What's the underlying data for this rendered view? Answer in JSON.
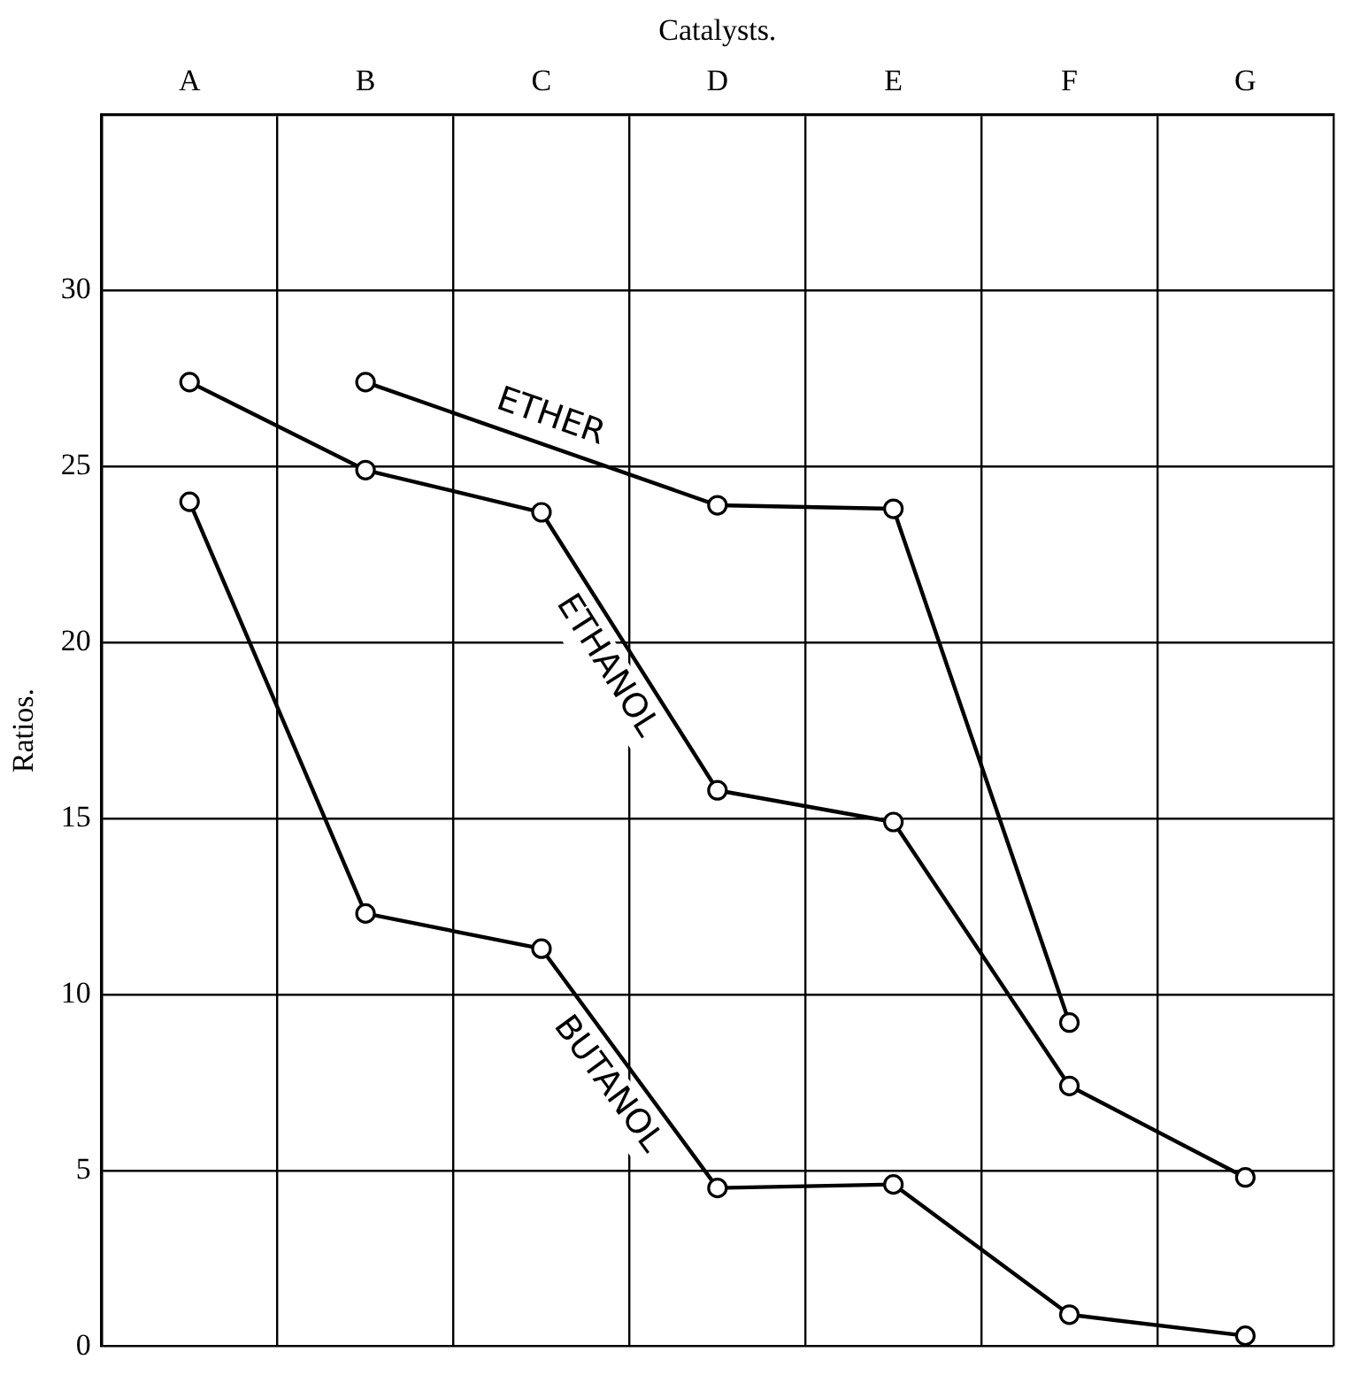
{
  "chart_data": {
    "type": "line",
    "xlabel": "Catalysts.",
    "ylabel": "Ratios.",
    "categories": [
      "A",
      "B",
      "C",
      "D",
      "E",
      "F",
      "G"
    ],
    "series": [
      {
        "name": "ETHER",
        "color": "#000000",
        "values": [
          null,
          27.4,
          null,
          23.9,
          23.8,
          9.2,
          null
        ]
      },
      {
        "name": "ETHANOL",
        "color": "#000000",
        "values": [
          27.4,
          24.9,
          23.7,
          15.8,
          14.9,
          7.4,
          4.8
        ]
      },
      {
        "name": "BUTANOL",
        "color": "#000000",
        "values": [
          24.0,
          12.3,
          11.3,
          4.5,
          4.6,
          0.9,
          0.3
        ]
      }
    ],
    "ylim": [
      0,
      35
    ],
    "yticks": [
      0,
      5,
      10,
      15,
      20,
      25,
      30
    ],
    "grid": true,
    "legend": false,
    "marker": "circle",
    "line_style": "solid"
  }
}
